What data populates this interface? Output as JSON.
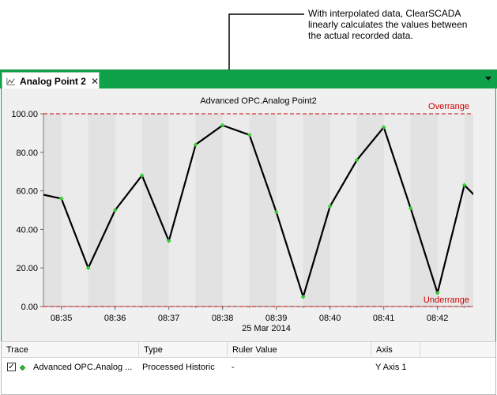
{
  "callout": {
    "lines": [
      "With interpolated data, ClearSCADA",
      "linearly calculates the values between",
      "the actual recorded data."
    ]
  },
  "tab": {
    "label": "Analog Point 2",
    "close_glyph": "✕"
  },
  "colors": {
    "tabbar": "#0fa24a",
    "trace": "#000000",
    "marker": "#33cc33",
    "limit": "#cc0000"
  },
  "chart_data": {
    "type": "line",
    "title": "Advanced OPC.Analog Point2",
    "xlabel": "25 Mar 2014",
    "ylabel": "",
    "ylim": [
      0,
      100
    ],
    "y_ticks": [
      "0.00",
      "20.00",
      "40.00",
      "60.00",
      "80.00",
      "100.00"
    ],
    "x_ticks": [
      "08:35",
      "08:36",
      "08:37",
      "08:38",
      "08:39",
      "08:40",
      "08:41",
      "08:42"
    ],
    "xlim": [
      "08:34:40",
      "08:42:40"
    ],
    "limits": [
      {
        "label": "Overrange",
        "value": 100
      },
      {
        "label": "Underrange",
        "value": 0
      }
    ],
    "grid": true,
    "series": [
      {
        "x": [
          "08:34:40",
          "08:35:00",
          "08:35:30",
          "08:36:00",
          "08:36:30",
          "08:37:00",
          "08:37:30",
          "08:38:00",
          "08:38:30",
          "08:39:00",
          "08:39:30",
          "08:40:00",
          "08:40:30",
          "08:41:00",
          "08:41:30",
          "08:42:00",
          "08:42:30",
          "08:42:45"
        ],
        "values": [
          58,
          56,
          20,
          50,
          68,
          34,
          84,
          94,
          89,
          49,
          5,
          52,
          76,
          93,
          51,
          7,
          63,
          56
        ]
      }
    ]
  },
  "table": {
    "headers": [
      "Trace",
      "Type",
      "Ruler Value",
      "Axis"
    ],
    "rows": [
      {
        "check": "✓",
        "trace": "Advanced OPC.Analog ...",
        "type": "Processed Historic",
        "ruler": "-",
        "axis": "Y Axis 1"
      }
    ]
  }
}
